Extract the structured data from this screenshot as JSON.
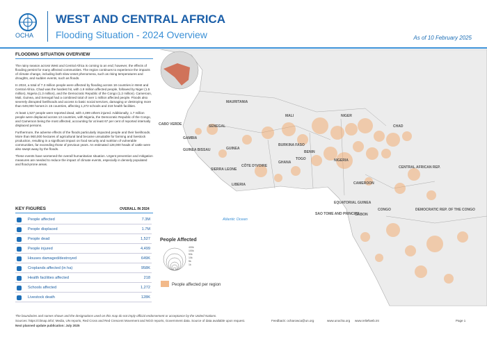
{
  "header": {
    "logo_text": "OCHA",
    "title": "WEST AND CENTRAL AFRICA",
    "subtitle": "Flooding Situation - 2024 Overview",
    "date": "As of 10 February 2025"
  },
  "overview": {
    "title": "FLOODING SITUATION OVERVIEW",
    "paragraphs": [
      "The rainy season across West and Central Africa is coming to an end; however, the effects of flooding persist for many affected communities. The region continues to experience the impacts of climate change, including both slow-onset phenomena, such as rising temperatures and droughts, and sudden events, such as floods.",
      "In 2024, a total of 7.3 million people were affected by flooding across 18 countries in West and Central Africa. Chad was the hardest hit, with 1.9 million affected people, followed by Niger (1.5 million), Nigeria (1.3 million), and the Democratic Republic of the Congo (1.2 million). Cameroon, Mali, Guinea, and Senegal had a combined total of over 1 million affected people. Floods also severely disrupted livelihoods and access to basic social services, damaging or destroying more than 649,000 homes in 15 countries, affecting 1,272 schools and 218 health facilities.",
      "At least 1,527 people were reported dead, with 4,499 others injured. Additionally, 1.7 million people were displaced across 13 countries, with Nigeria, the Democratic Republic of the Congo, and Cameroon being the most affected, accounting for at least 67 per cent of reported internally displaced persons.",
      "Furthermore, the adverse effects of the floods particularly impacted people and their livelihoods. More than 960,000 hectares of agricultural land became unsuitable for farming and livestock production, resulting in a significant impact on food security and nutrition of vulnerable communities, far exceeding those of previous years. An estimated 128,000 heads of cattle were also swept away by the floods.",
      "These events have worsened the overall humanitarian situation. Urgent prevention and mitigation measures are needed to reduce the impact of climate events, especially in densely populated and flood-prone areas."
    ]
  },
  "key_figures": {
    "title": "KEY FIGURES",
    "column": "OVERALL IN 2024",
    "rows": [
      [
        "People affected",
        "7.3M"
      ],
      [
        "People displaced",
        "1.7M"
      ],
      [
        "People dead",
        "1,527"
      ],
      [
        "People injured",
        "4,499"
      ],
      [
        "Houses damaged/destroyed",
        "649K"
      ],
      [
        "Croplands affected (in ha)",
        "958K"
      ],
      [
        "Health facilities affected",
        "218"
      ],
      [
        "Schools affected",
        "1,272"
      ],
      [
        "Livestock death",
        "128K"
      ]
    ]
  },
  "map": {
    "countries": [
      "MAURITANIA",
      "MALI",
      "NIGER",
      "CHAD",
      "SENEGAL",
      "CABO VERDE",
      "GAMBIA",
      "GUINEA BISSAU",
      "GUINEA",
      "BURKINA FASO",
      "BENIN",
      "TOGO",
      "SIERRA LEONE",
      "CÔTE D'IVOIRE",
      "GHANA",
      "NIGERIA",
      "CENTRAL AFRICAN REP.",
      "LIBERIA",
      "CAMEROON",
      "EQUATORIAL GUINEA",
      "SAO TOME AND PRINCIPE",
      "GABON",
      "CONGO",
      "DEMOCRATIC REP. OF THE CONGO"
    ],
    "ocean": "Atlantic Ocean",
    "legend": {
      "title": "People Affected",
      "sizes": [
        "400k",
        "100k",
        "50k",
        "10k",
        "5k",
        "1k"
      ],
      "region": "People affected per region"
    }
  },
  "footer": {
    "disclaimer": "The boundaries and names shown and the designations used on this map do not imply official endorsement or acceptance by the United Nations.",
    "sources": "Sources: https://climap.info/; Media, UN reports, Red Cross and Red Crescent Movement and NGO reports, Government data. Source of data available upon request.",
    "feedback": "Feedback: ocharowca@un.org",
    "site1": "www.unocha.org",
    "site2": "www.reliefweb.int",
    "next_update": "Next planned update publication: July 2025",
    "page": "Page 1"
  }
}
